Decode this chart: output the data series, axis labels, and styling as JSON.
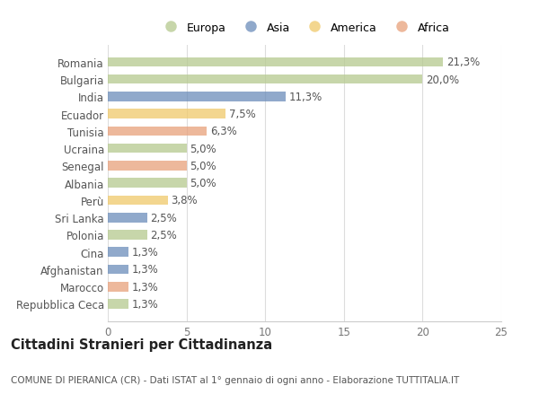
{
  "categories": [
    "Romania",
    "Bulgaria",
    "India",
    "Ecuador",
    "Tunisia",
    "Ucraina",
    "Senegal",
    "Albania",
    "Perù",
    "Sri Lanka",
    "Polonia",
    "Cina",
    "Afghanistan",
    "Marocco",
    "Repubblica Ceca"
  ],
  "values": [
    21.3,
    20.0,
    11.3,
    7.5,
    6.3,
    5.0,
    5.0,
    5.0,
    3.8,
    2.5,
    2.5,
    1.3,
    1.3,
    1.3,
    1.3
  ],
  "labels": [
    "21,3%",
    "20,0%",
    "11,3%",
    "7,5%",
    "6,3%",
    "5,0%",
    "5,0%",
    "5,0%",
    "3,8%",
    "2,5%",
    "2,5%",
    "1,3%",
    "1,3%",
    "1,3%",
    "1,3%"
  ],
  "continents": [
    "Europa",
    "Europa",
    "Asia",
    "America",
    "Africa",
    "Europa",
    "Africa",
    "Europa",
    "America",
    "Asia",
    "Europa",
    "Asia",
    "Asia",
    "Africa",
    "Europa"
  ],
  "colors": {
    "Europa": "#b5c98e",
    "Asia": "#6b8cba",
    "America": "#f0c96a",
    "Africa": "#e8a07a"
  },
  "legend_order": [
    "Europa",
    "Asia",
    "America",
    "Africa"
  ],
  "xlim": [
    0,
    25
  ],
  "xticks": [
    0,
    5,
    10,
    15,
    20,
    25
  ],
  "title": "Cittadini Stranieri per Cittadinanza",
  "subtitle": "COMUNE DI PIERANICA (CR) - Dati ISTAT al 1° gennaio di ogni anno - Elaborazione TUTTITALIA.IT",
  "background_color": "#ffffff",
  "bar_height": 0.55,
  "label_fontsize": 8.5,
  "tick_fontsize": 8.5,
  "title_fontsize": 10.5,
  "subtitle_fontsize": 7.5
}
